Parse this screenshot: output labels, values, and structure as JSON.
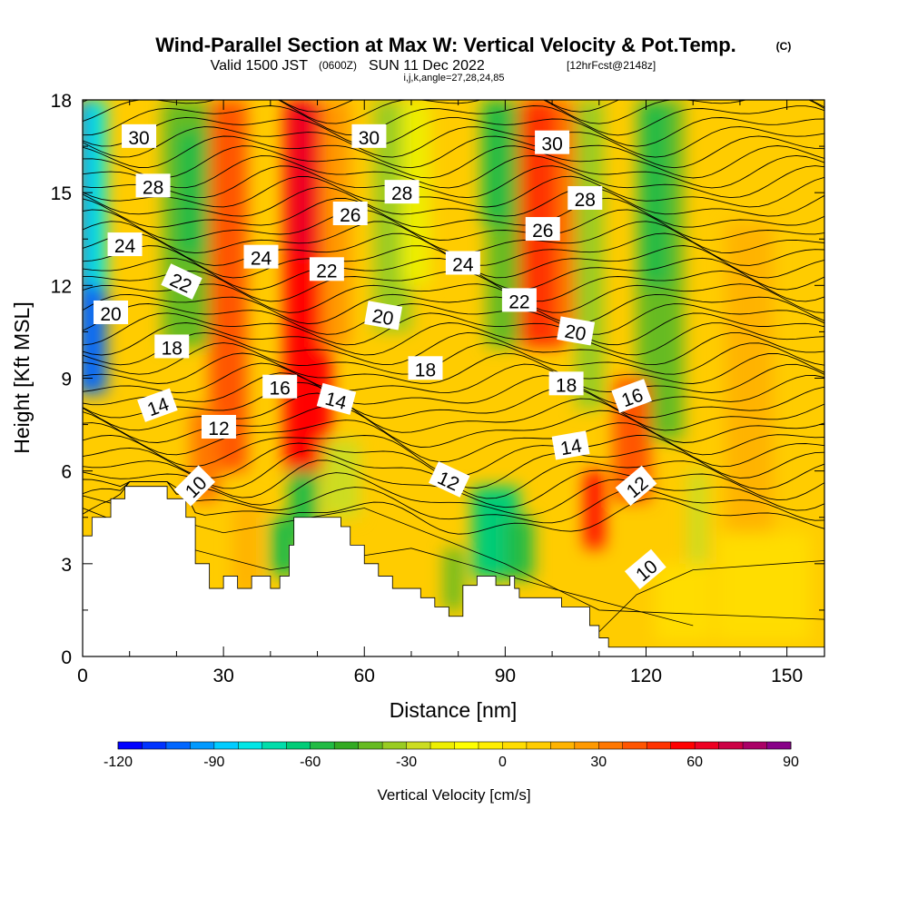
{
  "chart_data": {
    "type": "heatmap",
    "title": "Wind-Parallel Section at Max W: Vertical Velocity & Pot.Temp.",
    "title_suffix": "(C)",
    "subtitle_valid": "Valid 1500 JST",
    "subtitle_z": "(0600Z)",
    "subtitle_date": "SUN 11 Dec 2022",
    "subtitle_fcst": "[12hrFcst@2148z]",
    "subtitle_params": "i,j,k,angle=27,28,24,85",
    "xlabel": "Distance [nm]",
    "ylabel": "Height [Kft MSL]",
    "xlim": [
      0,
      158
    ],
    "ylim": [
      0,
      18
    ],
    "x_ticks": [
      0,
      30,
      60,
      90,
      120,
      150
    ],
    "y_ticks": [
      0,
      3,
      6,
      9,
      12,
      15,
      18
    ],
    "x_tick_labels": [
      "0",
      "30",
      "60",
      "90",
      "120",
      "150"
    ],
    "y_tick_labels": [
      "0",
      "3",
      "6",
      "9",
      "12",
      15,
      "18"
    ],
    "colorbar": {
      "label": "Vertical Velocity [cm/s]",
      "min": -120,
      "max": 90,
      "step": 7.5,
      "tick_labels": [
        "-120",
        "-90",
        "-60",
        "-30",
        "0",
        "30",
        "60",
        "90"
      ],
      "colors": [
        "#0000ff",
        "#0033ff",
        "#0066ff",
        "#0099ff",
        "#00ccff",
        "#00e6e6",
        "#00ddaa",
        "#00cc77",
        "#22bb44",
        "#33aa22",
        "#66bb22",
        "#99cc22",
        "#ccdd22",
        "#eeee00",
        "#ffff00",
        "#ffee00",
        "#ffdd00",
        "#ffcc00",
        "#ffb300",
        "#ff9900",
        "#ff7700",
        "#ff5500",
        "#ff3300",
        "#ff0000",
        "#ee0022",
        "#cc0044",
        "#aa0066",
        "#880088"
      ]
    },
    "isentrope_labels": [
      {
        "v": "30",
        "x": 12,
        "y": 16.8,
        "r": 0
      },
      {
        "v": "30",
        "x": 61,
        "y": 16.8,
        "r": 0
      },
      {
        "v": "30",
        "x": 100,
        "y": 16.6,
        "r": 0
      },
      {
        "v": "28",
        "x": 15,
        "y": 15.2,
        "r": 0
      },
      {
        "v": "28",
        "x": 68,
        "y": 15.0,
        "r": 0
      },
      {
        "v": "28",
        "x": 107,
        "y": 14.8,
        "r": 0
      },
      {
        "v": "26",
        "x": 57,
        "y": 14.3,
        "r": 0
      },
      {
        "v": "26",
        "x": 98,
        "y": 13.8,
        "r": 0
      },
      {
        "v": "24",
        "x": 9,
        "y": 13.3,
        "r": 0
      },
      {
        "v": "24",
        "x": 38,
        "y": 12.9,
        "r": 0
      },
      {
        "v": "24",
        "x": 81,
        "y": 12.7,
        "r": 0
      },
      {
        "v": "22",
        "x": 21,
        "y": 12.1,
        "r": 25
      },
      {
        "v": "22",
        "x": 52,
        "y": 12.5,
        "r": 0
      },
      {
        "v": "22",
        "x": 93,
        "y": 11.5,
        "r": 0
      },
      {
        "v": "20",
        "x": 6,
        "y": 11.1,
        "r": 0
      },
      {
        "v": "20",
        "x": 64,
        "y": 11.0,
        "r": 10
      },
      {
        "v": "20",
        "x": 105,
        "y": 10.5,
        "r": 10
      },
      {
        "v": "18",
        "x": 19,
        "y": 10.0,
        "r": 0
      },
      {
        "v": "18",
        "x": 73,
        "y": 9.3,
        "r": 0
      },
      {
        "v": "18",
        "x": 103,
        "y": 8.8,
        "r": 0
      },
      {
        "v": "16",
        "x": 42,
        "y": 8.7,
        "r": 0
      },
      {
        "v": "16",
        "x": 117,
        "y": 8.4,
        "r": -20
      },
      {
        "v": "14",
        "x": 16,
        "y": 8.1,
        "r": -20
      },
      {
        "v": "14",
        "x": 54,
        "y": 8.3,
        "r": 15
      },
      {
        "v": "14",
        "x": 104,
        "y": 6.8,
        "r": -10
      },
      {
        "v": "12",
        "x": 29,
        "y": 7.4,
        "r": 0
      },
      {
        "v": "12",
        "x": 78,
        "y": 5.7,
        "r": 25
      },
      {
        "v": "12",
        "x": 118,
        "y": 5.5,
        "r": -40
      },
      {
        "v": "10",
        "x": 24,
        "y": 5.5,
        "r": -45
      },
      {
        "v": "10",
        "x": 120,
        "y": 2.8,
        "r": -40
      }
    ]
  }
}
